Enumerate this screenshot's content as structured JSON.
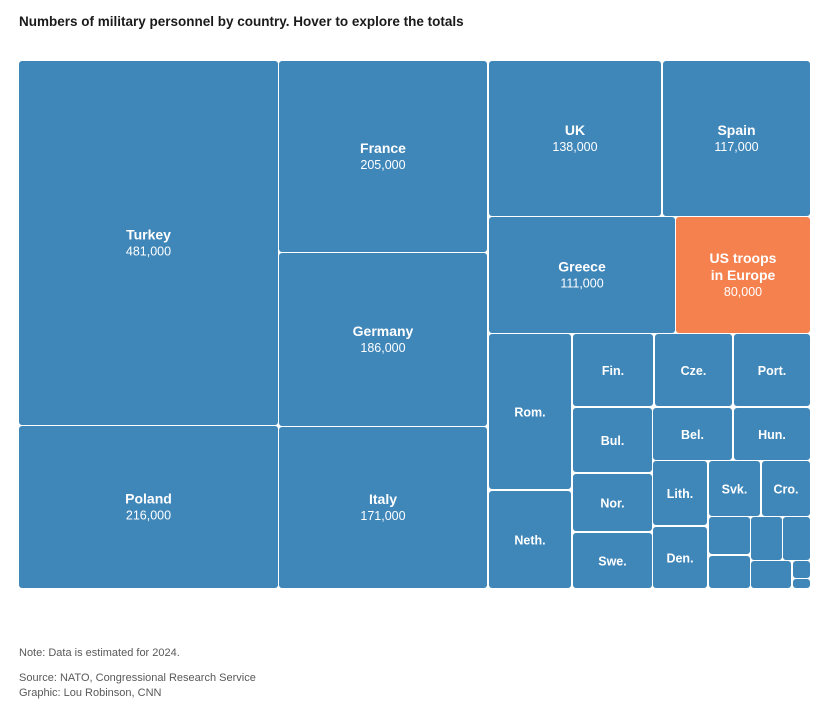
{
  "chart_data": {
    "type": "treemap",
    "title": "Numbers of military personnel by country. Hover to explore the totals",
    "unit": "personnel",
    "items": [
      {
        "name": "Turkey",
        "value": 481000,
        "value_label": "481,000"
      },
      {
        "name": "Poland",
        "value": 216000,
        "value_label": "216,000"
      },
      {
        "name": "France",
        "value": 205000,
        "value_label": "205,000"
      },
      {
        "name": "Germany",
        "value": 186000,
        "value_label": "186,000"
      },
      {
        "name": "Italy",
        "value": 171000,
        "value_label": "171,000"
      },
      {
        "name": "UK",
        "value": 138000,
        "value_label": "138,000"
      },
      {
        "name": "Spain",
        "value": 117000,
        "value_label": "117,000"
      },
      {
        "name": "Greece",
        "value": 111000,
        "value_label": "111,000"
      },
      {
        "name": "US troops in Europe",
        "label_lines": [
          "US troops",
          "in Europe"
        ],
        "value": 80000,
        "value_label": "80,000",
        "highlight": true
      },
      {
        "name": "Rom."
      },
      {
        "name": "Neth."
      },
      {
        "name": "Fin."
      },
      {
        "name": "Cze."
      },
      {
        "name": "Port."
      },
      {
        "name": "Bul."
      },
      {
        "name": "Bel."
      },
      {
        "name": "Hun."
      },
      {
        "name": "Nor."
      },
      {
        "name": "Lith."
      },
      {
        "name": "Svk."
      },
      {
        "name": "Cro."
      },
      {
        "name": "Swe."
      },
      {
        "name": "Den."
      },
      {
        "name": ""
      },
      {
        "name": ""
      },
      {
        "name": ""
      },
      {
        "name": ""
      },
      {
        "name": ""
      },
      {
        "name": ""
      },
      {
        "name": ""
      }
    ]
  },
  "footer": {
    "note": "Note: Data is estimated for 2024.",
    "source": "Source: NATO, Congressional Research Service",
    "graphic": "Graphic: Lou Robinson, CNN"
  }
}
